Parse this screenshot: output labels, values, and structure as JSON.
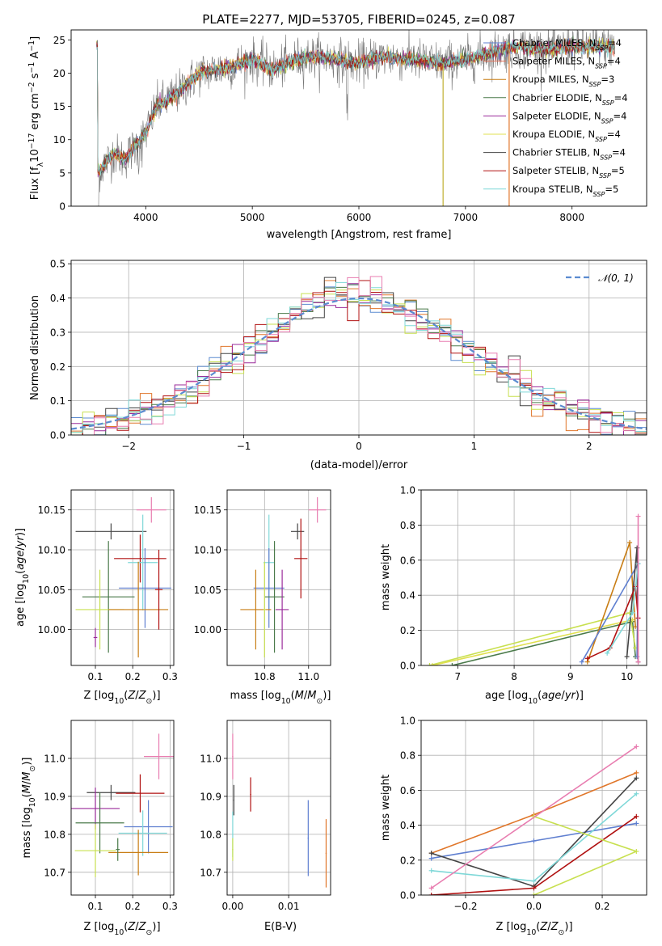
{
  "chart_data": [
    {
      "type": "line",
      "title": "PLATE=2277, MJD=53705, FIBERID=0245, z=0.087",
      "xlabel": "wavelength [Angstrom, rest frame]",
      "ylabel": "Flux [f_λ 10^-17 erg cm^-2 s^-1 A^-1]",
      "xlim": [
        3300,
        8700
      ],
      "ylim": [
        0,
        26.5
      ],
      "x_ticks": [
        4000,
        5000,
        6000,
        7000,
        8000
      ],
      "y_ticks": [
        0,
        5,
        10,
        15,
        20,
        25
      ],
      "grid": false,
      "legend_position": "right",
      "continuum": {
        "x": [
          3550,
          3700,
          3800,
          3900,
          4000,
          4100,
          4300,
          4500,
          4800,
          5000,
          5200,
          5400,
          5600,
          5800,
          6000,
          6200,
          6500,
          6800,
          7000,
          7200,
          7500,
          7800,
          8000,
          8300,
          8400
        ],
        "y": [
          5,
          8,
          7,
          9,
          11,
          15,
          17,
          20,
          21,
          22,
          20.5,
          22,
          22.5,
          22,
          21.5,
          22.5,
          22,
          21.5,
          22,
          23,
          24,
          23.5,
          24,
          24,
          24
        ]
      },
      "series": [
        {
          "name": "Chabrier MILES, N_SSP=4",
          "color": "#5f7fd0"
        },
        {
          "name": "Salpeter MILES, N_SSP=4",
          "color": "#e8735a"
        },
        {
          "name": "Kroupa MILES, N_SSP=3",
          "color": "#c87d14"
        },
        {
          "name": "Chabrier ELODIE, N_SSP=4",
          "color": "#4a7a4a"
        },
        {
          "name": "Salpeter ELODIE, N_SSP=4",
          "color": "#9a2a9a"
        },
        {
          "name": "Kroupa ELODIE, N_SSP=4",
          "color": "#e0e050"
        },
        {
          "name": "Chabrier STELIB, N_SSP=4",
          "color": "#444444"
        },
        {
          "name": "Salpeter STELIB, N_SSP=5",
          "color": "#b01010"
        },
        {
          "name": "Kroupa STELIB, N_SSP=5",
          "color": "#7fd8d8"
        }
      ]
    },
    {
      "type": "histogram",
      "xlabel": "(data-model)/error",
      "ylabel": "Normed distribution",
      "xlim": [
        -2.5,
        2.5
      ],
      "ylim": [
        0,
        0.51
      ],
      "x_ticks": [
        -2,
        -1,
        0,
        1,
        2
      ],
      "y_ticks": [
        0,
        0.1,
        0.2,
        0.3,
        0.4,
        0.5
      ],
      "grid": true,
      "legend": "N(0,1)",
      "legend_position": "top-right",
      "bin_width": 0.1,
      "reference_curve": "normal(0,1)"
    },
    {
      "type": "scatter",
      "xlabel": "Z [log10(Z/Z_sun)]",
      "ylabel": "age [log10(age/yr)]",
      "xlim": [
        0.035,
        0.31
      ],
      "ylim": [
        9.955,
        10.175
      ],
      "x_ticks": [
        0.1,
        0.2,
        0.3
      ],
      "y_ticks": [
        10.0,
        10.05,
        10.1,
        10.15
      ],
      "grid": true
    },
    {
      "type": "scatter",
      "xlabel": "mass [log10(M/M_sun)]",
      "xlim": [
        10.63,
        11.1
      ],
      "ylim": [
        9.955,
        10.175
      ],
      "x_ticks": [
        10.8,
        11.0
      ],
      "y_ticks": [
        10.0,
        10.05,
        10.1,
        10.15
      ],
      "grid": true
    },
    {
      "type": "line",
      "xlabel": "age  [log10(age/yr)]",
      "ylabel": "mass weight",
      "xlim": [
        6.35,
        10.35
      ],
      "ylim": [
        0,
        1.0
      ],
      "x_ticks": [
        7,
        8,
        9,
        10
      ],
      "y_ticks": [
        0,
        0.2,
        0.4,
        0.6,
        0.8,
        1.0
      ],
      "grid": true
    },
    {
      "type": "scatter",
      "xlabel": "Z [log10(Z/Z_sun)]",
      "ylabel": "mass [log10(M/M_sun)]",
      "xlim": [
        0.035,
        0.31
      ],
      "ylim": [
        10.64,
        11.1
      ],
      "x_ticks": [
        0.1,
        0.2,
        0.3
      ],
      "y_ticks": [
        10.7,
        10.8,
        10.9,
        11.0
      ],
      "grid": true
    },
    {
      "type": "scatter",
      "xlabel": "E(B-V)",
      "xlim": [
        -0.001,
        0.0175
      ],
      "ylim": [
        10.64,
        11.1
      ],
      "x_ticks": [
        0.0,
        0.01
      ],
      "y_ticks": [
        10.7,
        10.8,
        10.9,
        11.0
      ],
      "grid": true
    },
    {
      "type": "line",
      "xlabel": "Z [log10(Z/Z_sun)]",
      "ylabel": "mass weight",
      "xlim": [
        -0.33,
        0.33
      ],
      "ylim": [
        0,
        1.0
      ],
      "x_ticks": [
        -0.2,
        0.0,
        0.2
      ],
      "y_ticks": [
        0,
        0.2,
        0.4,
        0.6,
        0.8,
        1.0
      ],
      "grid": true
    }
  ],
  "colors": {
    "Chabrier MILES": "#5f7fd0",
    "Salpeter MILES": "#e8735a",
    "Kroupa MILES": "#c87d14",
    "Chabrier ELODIE": "#4a7a4a",
    "Salpeter ELODIE": "#9a2a9a",
    "Kroupa ELODIE": "#e0e050",
    "Chabrier STELIB": "#444444",
    "Salpeter STELIB": "#b01010",
    "Kroupa STELIB": "#7fd8d8",
    "pink": "#e87db0",
    "histogram_blue": "#5b8bd0"
  }
}
